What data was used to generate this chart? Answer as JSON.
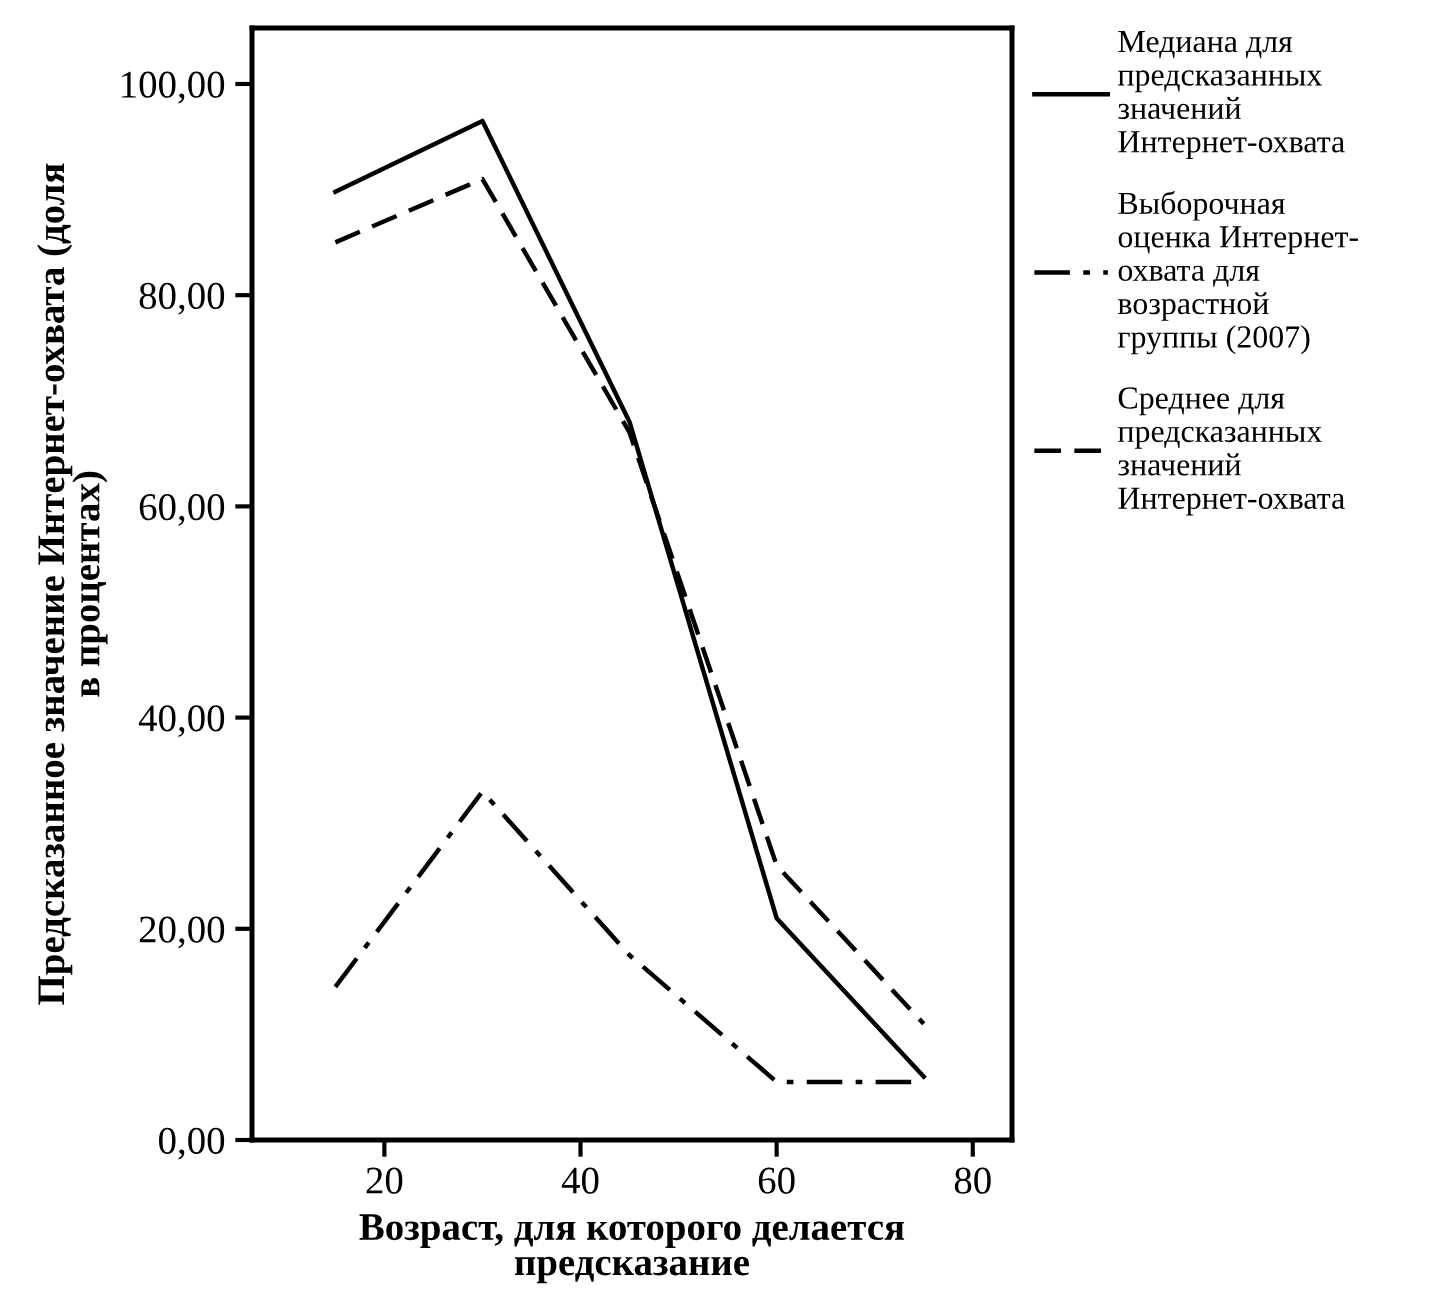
{
  "chart_data": {
    "type": "line",
    "xlabel": "Возраст, для которого делается\nпредсказание",
    "ylabel": "Предсказанное значение Интернет-охвата (доля\nв процентах)",
    "x": [
      15,
      30,
      45,
      60,
      75
    ],
    "series": [
      {
        "name": "Медиана для\nпредсказанных\nзначений\nИнтернет-охвата",
        "color": "#000000",
        "line_style": "solid",
        "values": [
          89.8,
          96.5,
          68,
          21,
          6
        ]
      },
      {
        "name": "Выборочная\nоценка Интернет-\nохвата для\nвозрастной\nгруппы (2007)",
        "color": "#000000",
        "line_style": "dashdot",
        "values": [
          14.5,
          33,
          17.5,
          5.5,
          5.5
        ]
      },
      {
        "name": "Среднее для\nпредсказанных\nзначений\nИнтернет-охвата",
        "color": "#000000",
        "line_style": "dashed",
        "values": [
          85,
          91,
          67,
          26,
          11
        ]
      }
    ],
    "xlim": [
      6.5,
      84
    ],
    "xticks": [
      20,
      40,
      60,
      80
    ],
    "ylim": [
      0,
      105.3
    ],
    "yticks": [
      {
        "value": 0,
        "label": "0,00"
      },
      {
        "value": 20,
        "label": "20,00"
      },
      {
        "value": 40,
        "label": "40,00"
      },
      {
        "value": 60,
        "label": "60,00"
      },
      {
        "value": 80,
        "label": "80,00"
      },
      {
        "value": 100,
        "label": "100,00"
      }
    ],
    "grid": false,
    "legend": "right",
    "marker": "none"
  }
}
